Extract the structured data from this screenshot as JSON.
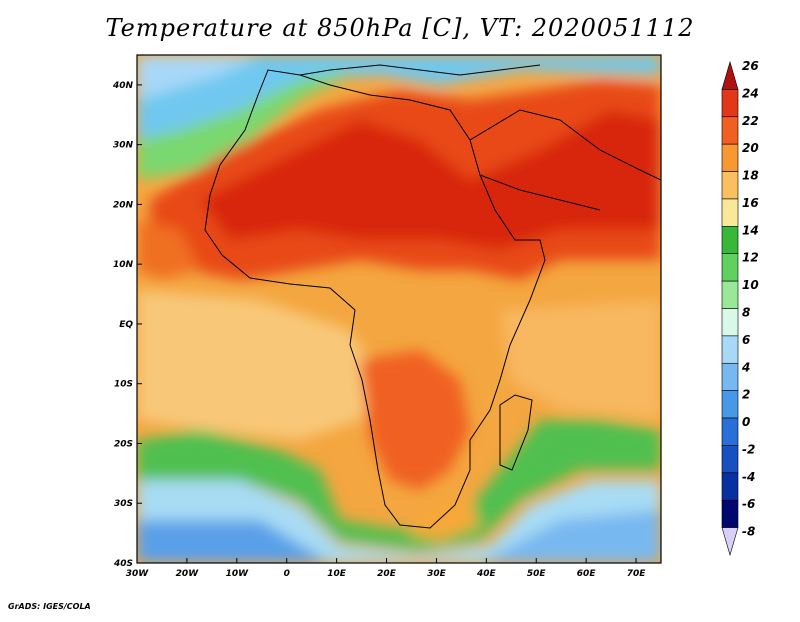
{
  "title": "Temperature at 850hPa [C], VT: 2020051112",
  "credit": "GrADS: IGES/COLA",
  "map": {
    "lon_range": [
      -30,
      75
    ],
    "lat_range": [
      -40,
      45
    ],
    "lon_ticks": [
      "30W",
      "20W",
      "10W",
      "0",
      "10E",
      "20E",
      "30E",
      "40E",
      "50E",
      "60E",
      "70E"
    ],
    "lat_ticks": [
      "40S",
      "30S",
      "20S",
      "10S",
      "EQ",
      "10N",
      "20N",
      "30N",
      "40N"
    ]
  },
  "colorbar": {
    "labels": [
      "26",
      "24",
      "22",
      "20",
      "18",
      "16",
      "14",
      "12",
      "10",
      "8",
      "6",
      "4",
      "2",
      "0",
      "-2",
      "-4",
      "-6",
      "-8"
    ],
    "colors": [
      "#b01010",
      "#e03818",
      "#f06020",
      "#f89830",
      "#f8c060",
      "#f8e898",
      "#38b838",
      "#60d060",
      "#98e898",
      "#d8f8e8",
      "#a8d8f8",
      "#78b8f0",
      "#4898e8",
      "#2870d8",
      "#1850c0",
      "#0830a0",
      "#000870",
      "#d8d0f8"
    ]
  }
}
